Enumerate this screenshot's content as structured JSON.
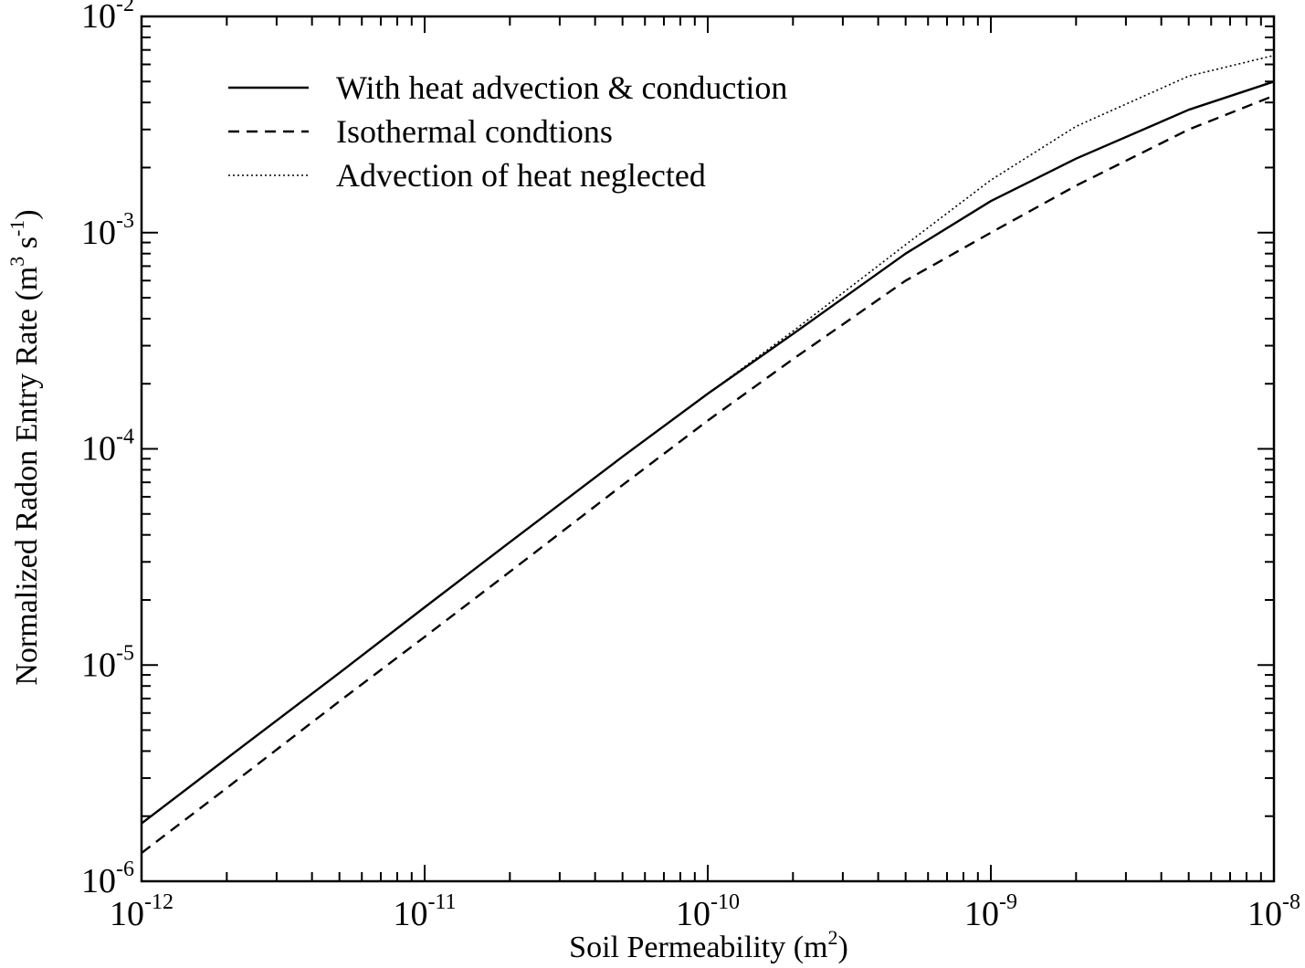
{
  "chart_data": {
    "type": "line",
    "title": "",
    "xlabel": {
      "prefix": "Soil Permeability (m",
      "sup": "2",
      "suffix": ")"
    },
    "ylabel": {
      "prefix": "Normalized Radon Entry Rate (m",
      "sup1": "3",
      "middle": " s",
      "sup2": "-1",
      "suffix": ")"
    },
    "x_scale": "log",
    "y_scale": "log",
    "xlim": [
      1e-12,
      1e-08
    ],
    "ylim": [
      1e-06,
      0.01
    ],
    "x_ticks": [
      {
        "value": 1e-12,
        "base": "10",
        "exp": "-12"
      },
      {
        "value": 1e-11,
        "base": "10",
        "exp": "-11"
      },
      {
        "value": 1e-10,
        "base": "10",
        "exp": "-10"
      },
      {
        "value": 1e-09,
        "base": "10",
        "exp": "-9"
      },
      {
        "value": 1e-08,
        "base": "10",
        "exp": "-8"
      }
    ],
    "y_ticks": [
      {
        "value": 1e-06,
        "base": "10",
        "exp": "-6"
      },
      {
        "value": 1e-05,
        "base": "10",
        "exp": "-5"
      },
      {
        "value": 0.0001,
        "base": "10",
        "exp": "-4"
      },
      {
        "value": 0.001,
        "base": "10",
        "exp": "-3"
      },
      {
        "value": 0.01,
        "base": "10",
        "exp": "-2"
      }
    ],
    "grid": false,
    "legend_position": "top-left",
    "series": [
      {
        "name": "With heat advection & conduction",
        "style": "solid",
        "x": [
          1e-12,
          2e-12,
          5e-12,
          1e-11,
          2e-11,
          5e-11,
          1e-10,
          2e-10,
          5e-10,
          1e-09,
          2e-09,
          5e-09,
          1e-08
        ],
        "y": [
          1.85e-06,
          3.7e-06,
          9.2e-06,
          1.85e-05,
          3.7e-05,
          9.2e-05,
          0.00018,
          0.00034,
          0.0008,
          0.0014,
          0.0022,
          0.0037,
          0.005
        ]
      },
      {
        "name": "Isothermal condtions",
        "style": "dashed",
        "x": [
          1e-12,
          2e-12,
          5e-12,
          1e-11,
          2e-11,
          5e-11,
          1e-10,
          2e-10,
          5e-10,
          1e-09,
          2e-09,
          5e-09,
          1e-08
        ],
        "y": [
          1.35e-06,
          2.7e-06,
          6.8e-06,
          1.35e-05,
          2.7e-05,
          6.8e-05,
          0.000135,
          0.00026,
          0.0006,
          0.001,
          0.00165,
          0.003,
          0.0043
        ]
      },
      {
        "name": "Advection of heat neglected",
        "style": "dotted",
        "x": [
          1e-10,
          2e-10,
          5e-10,
          1e-09,
          2e-09,
          5e-09,
          1e-08
        ],
        "y": [
          0.00018,
          0.00035,
          0.00088,
          0.00175,
          0.0031,
          0.0053,
          0.0066
        ]
      }
    ]
  }
}
